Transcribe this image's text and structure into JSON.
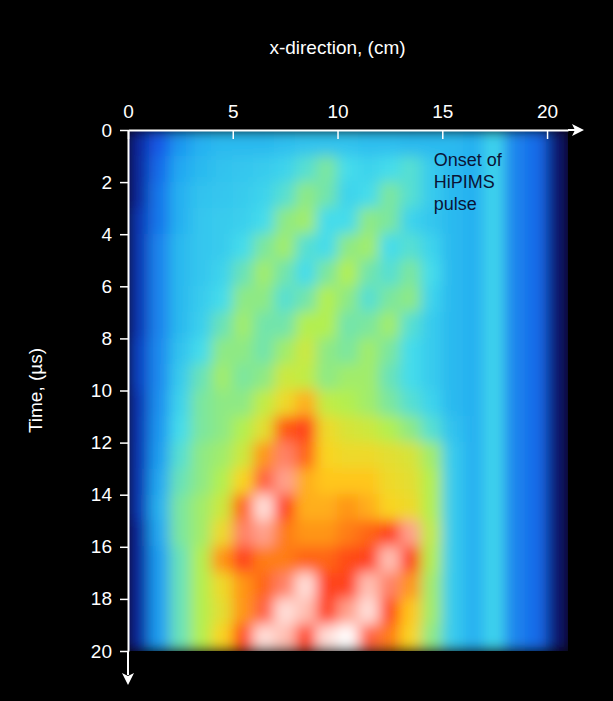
{
  "chart_data": {
    "type": "heatmap",
    "x_label": "x-direction, (cm)",
    "y_label": "Time, (µs)",
    "annotation": "Onset of HiPIMS pulse",
    "xlim": [
      0,
      21
    ],
    "xticks": [
      0,
      5,
      10,
      15,
      20
    ],
    "ylim": [
      0,
      20
    ],
    "yticks": [
      0,
      2,
      4,
      6,
      8,
      10,
      12,
      14,
      16,
      18,
      20
    ],
    "zlim": [
      0,
      100
    ],
    "x": [
      0.5,
      1.5,
      2.5,
      3.5,
      4.5,
      5.5,
      6.5,
      7.5,
      8.5,
      9.5,
      10.5,
      11.5,
      12.5,
      13.5,
      14.5,
      15.5,
      16.5,
      17.5,
      18.5,
      19.5,
      20.5
    ],
    "y": [
      0.5,
      1.5,
      2.5,
      3.5,
      4.5,
      5.5,
      6.5,
      7.5,
      8.5,
      9.5,
      10.5,
      11.5,
      12.5,
      13.5,
      14.5,
      15.5,
      16.5,
      17.5,
      18.5,
      19.5
    ],
    "z": [
      [
        15,
        25,
        35,
        40,
        42,
        42,
        42,
        43,
        44,
        44,
        44,
        43,
        43,
        42,
        42,
        42,
        40,
        48,
        32,
        28,
        10
      ],
      [
        15,
        28,
        38,
        42,
        44,
        45,
        46,
        48,
        52,
        56,
        50,
        48,
        50,
        52,
        46,
        42,
        40,
        48,
        32,
        28,
        10
      ],
      [
        15,
        30,
        40,
        44,
        45,
        46,
        48,
        52,
        58,
        55,
        48,
        50,
        56,
        52,
        46,
        42,
        40,
        48,
        32,
        28,
        10
      ],
      [
        18,
        30,
        40,
        45,
        46,
        47,
        50,
        58,
        60,
        50,
        50,
        58,
        56,
        48,
        45,
        42,
        40,
        48,
        32,
        28,
        10
      ],
      [
        18,
        32,
        42,
        45,
        46,
        50,
        56,
        60,
        52,
        50,
        58,
        60,
        50,
        52,
        48,
        42,
        40,
        48,
        32,
        28,
        10
      ],
      [
        18,
        32,
        42,
        45,
        48,
        54,
        60,
        55,
        50,
        56,
        62,
        55,
        52,
        56,
        50,
        42,
        40,
        48,
        32,
        28,
        10
      ],
      [
        18,
        32,
        42,
        46,
        50,
        58,
        58,
        52,
        55,
        62,
        58,
        52,
        56,
        58,
        48,
        42,
        40,
        48,
        32,
        28,
        10
      ],
      [
        18,
        32,
        42,
        47,
        54,
        60,
        55,
        55,
        62,
        62,
        55,
        56,
        60,
        52,
        46,
        42,
        40,
        48,
        32,
        28,
        10
      ],
      [
        20,
        33,
        44,
        50,
        58,
        58,
        55,
        60,
        66,
        58,
        56,
        60,
        56,
        50,
        46,
        42,
        40,
        48,
        32,
        28,
        10
      ],
      [
        20,
        33,
        46,
        54,
        60,
        56,
        58,
        66,
        64,
        58,
        60,
        60,
        54,
        50,
        46,
        42,
        40,
        48,
        32,
        28,
        10
      ],
      [
        18,
        34,
        48,
        56,
        58,
        58,
        64,
        72,
        78,
        64,
        62,
        60,
        56,
        52,
        48,
        42,
        40,
        48,
        32,
        28,
        10
      ],
      [
        18,
        35,
        50,
        56,
        58,
        62,
        70,
        85,
        88,
        72,
        68,
        66,
        62,
        58,
        52,
        44,
        40,
        48,
        32,
        28,
        10
      ],
      [
        18,
        36,
        52,
        58,
        60,
        66,
        80,
        92,
        84,
        74,
        72,
        72,
        70,
        68,
        60,
        46,
        40,
        48,
        32,
        28,
        10
      ],
      [
        18,
        38,
        54,
        58,
        62,
        74,
        90,
        94,
        78,
        76,
        76,
        76,
        72,
        70,
        62,
        46,
        40,
        48,
        32,
        28,
        10
      ],
      [
        18,
        40,
        56,
        60,
        66,
        84,
        98,
        88,
        78,
        78,
        80,
        78,
        74,
        72,
        62,
        46,
        40,
        48,
        32,
        28,
        10
      ],
      [
        15,
        38,
        56,
        60,
        72,
        92,
        94,
        82,
        80,
        80,
        82,
        84,
        88,
        94,
        64,
        46,
        40,
        48,
        32,
        28,
        10
      ],
      [
        15,
        36,
        54,
        62,
        80,
        88,
        82,
        82,
        84,
        84,
        86,
        88,
        96,
        88,
        62,
        46,
        40,
        48,
        32,
        28,
        10
      ],
      [
        15,
        36,
        54,
        62,
        72,
        80,
        84,
        92,
        98,
        88,
        88,
        96,
        92,
        80,
        60,
        46,
        40,
        48,
        32,
        28,
        10
      ],
      [
        15,
        36,
        54,
        62,
        70,
        80,
        90,
        98,
        96,
        88,
        94,
        98,
        86,
        76,
        60,
        46,
        40,
        48,
        32,
        28,
        10
      ],
      [
        15,
        36,
        54,
        62,
        74,
        86,
        98,
        96,
        88,
        98,
        100,
        90,
        82,
        74,
        58,
        46,
        40,
        48,
        32,
        28,
        10
      ]
    ]
  }
}
